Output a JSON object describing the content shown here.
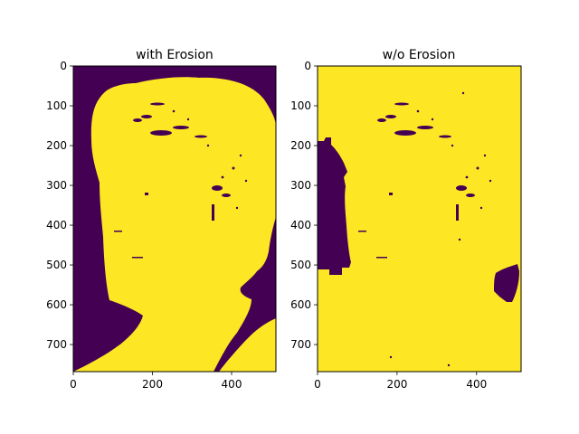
{
  "chart_data": [
    {
      "type": "heatmap",
      "title": "with Erosion",
      "xlabel": "",
      "ylabel": "",
      "xlim": [
        0,
        512
      ],
      "ylim": [
        768,
        0
      ],
      "xticks": [
        0,
        200,
        400
      ],
      "yticks": [
        0,
        100,
        200,
        300,
        400,
        500,
        600,
        700
      ],
      "colors": {
        "foreground": "#fde725",
        "background": "#440154"
      }
    },
    {
      "type": "heatmap",
      "title": "w/o Erosion",
      "xlabel": "",
      "ylabel": "",
      "xlim": [
        0,
        512
      ],
      "ylim": [
        768,
        0
      ],
      "xticks": [
        0,
        200,
        400
      ],
      "yticks": [
        0,
        100,
        200,
        300,
        400,
        500,
        600,
        700
      ],
      "colors": {
        "foreground": "#fde725",
        "background": "#440154"
      }
    }
  ]
}
